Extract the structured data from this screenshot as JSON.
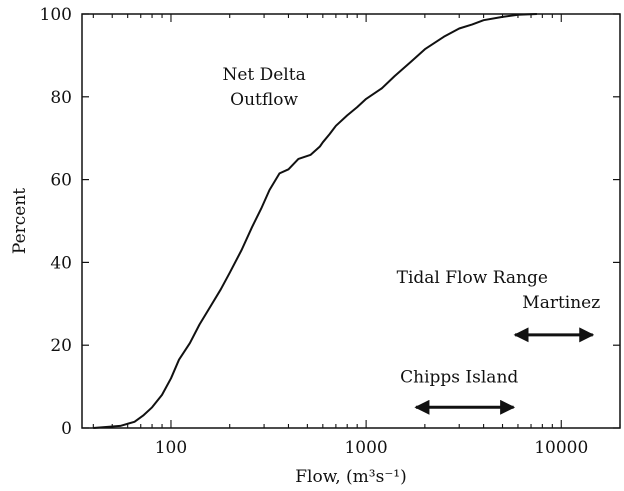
{
  "chart_data": {
    "type": "line",
    "xlabel": "Flow, (m³s⁻¹)",
    "ylabel": "Percent",
    "x_scale": "log",
    "xlim": [
      35,
      20000
    ],
    "ylim": [
      0,
      100
    ],
    "x_ticks": [
      100,
      1000,
      10000
    ],
    "x_tick_labels": [
      "100",
      "1000",
      "10000"
    ],
    "y_ticks": [
      0,
      20,
      40,
      60,
      80,
      100
    ],
    "y_tick_labels": [
      "0",
      "20",
      "40",
      "60",
      "80",
      "100"
    ],
    "grid": false,
    "series": [
      {
        "name": "Net Delta Outflow",
        "x": [
          40,
          55,
          65,
          72,
          80,
          90,
          100,
          110,
          125,
          140,
          160,
          180,
          200,
          230,
          260,
          290,
          320,
          360,
          400,
          450,
          520,
          580,
          600,
          650,
          700,
          800,
          900,
          1000,
          1200,
          1400,
          1700,
          2000,
          2500,
          3000,
          3500,
          4000,
          5000,
          6000,
          7500
        ],
        "y": [
          0,
          0.5,
          1.5,
          3,
          5,
          8,
          12,
          16.5,
          20.5,
          25,
          29.5,
          33.5,
          37.5,
          43,
          48.5,
          53,
          57.5,
          61.5,
          62.5,
          65,
          66,
          68,
          69,
          71,
          73,
          75.5,
          77.5,
          79.5,
          82,
          85,
          88.5,
          91.5,
          94.5,
          96.5,
          97.5,
          98.5,
          99.3,
          99.8,
          100
        ]
      }
    ],
    "annotations": [
      {
        "text": "Net Delta",
        "x": 300,
        "y": 84
      },
      {
        "text": "Outflow",
        "x": 300,
        "y": 78
      },
      {
        "text": "Tidal Flow Range",
        "x": 3500,
        "y": 35
      },
      {
        "text": "Martinez",
        "x": 10000,
        "y": 29
      },
      {
        "text": "Chipps Island",
        "x": 3000,
        "y": 11
      }
    ],
    "ranges": [
      {
        "label": "Martinez",
        "x_from": 5800,
        "x_to": 14500,
        "y": 22.5
      },
      {
        "label": "Chipps Island",
        "x_from": 1800,
        "x_to": 5700,
        "y": 5
      }
    ]
  }
}
